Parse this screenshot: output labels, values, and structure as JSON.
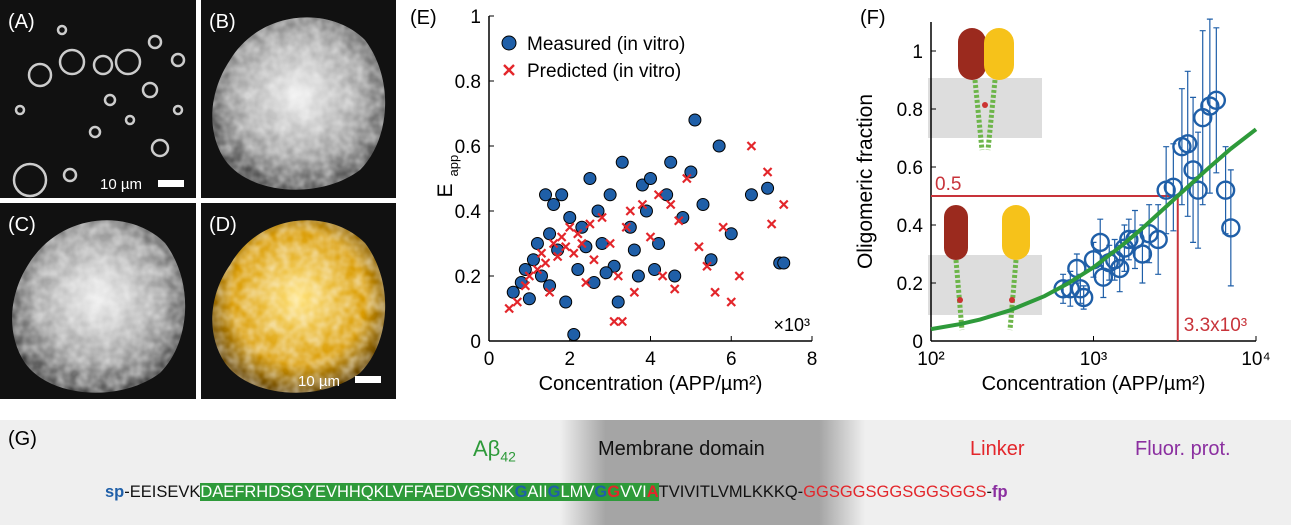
{
  "images": [
    {
      "label": "(A)",
      "scale_bar": "10 µm"
    },
    {
      "label": "(B)"
    },
    {
      "label": "(C)"
    },
    {
      "label": "(D)",
      "scale_bar": "10 µm"
    }
  ],
  "chart_data": [
    {
      "type": "scatter",
      "panel_label": "(E)",
      "xlabel": "Concentration (APP/µm²)",
      "ylabel": "E",
      "ylabel_sub": "app",
      "x_multiplier_label": "×10³",
      "legend": "upper left",
      "xlim": [
        0,
        8
      ],
      "xticks": [
        0,
        2,
        4,
        6,
        8
      ],
      "ylim": [
        0,
        1
      ],
      "yticks": [
        0,
        0.2,
        0.4,
        0.6,
        0.8,
        1
      ],
      "series": [
        {
          "name": "Measured (in vitro)",
          "color": "#1f5fa8",
          "marker": "circle",
          "x": [
            0.6,
            0.8,
            0.9,
            1.0,
            1.1,
            1.2,
            1.3,
            1.4,
            1.5,
            1.6,
            1.7,
            1.8,
            1.9,
            2.0,
            2.1,
            2.2,
            2.3,
            2.4,
            2.5,
            2.6,
            2.7,
            2.8,
            3.0,
            3.1,
            3.2,
            3.3,
            3.5,
            3.6,
            3.8,
            3.9,
            4.0,
            4.1,
            4.2,
            4.4,
            4.6,
            4.8,
            5.0,
            5.1,
            5.3,
            5.5,
            5.7,
            6.0,
            6.5,
            6.9,
            7.2,
            7.3,
            4.5,
            1.5,
            2.9,
            3.7
          ],
          "values": [
            0.15,
            0.18,
            0.22,
            0.13,
            0.25,
            0.3,
            0.2,
            0.45,
            0.33,
            0.42,
            0.28,
            0.45,
            0.12,
            0.38,
            0.02,
            0.22,
            0.35,
            0.29,
            0.5,
            0.18,
            0.4,
            0.3,
            0.45,
            0.23,
            0.12,
            0.55,
            0.35,
            0.28,
            0.48,
            0.4,
            0.5,
            0.22,
            0.3,
            0.45,
            0.2,
            0.38,
            0.52,
            0.68,
            0.42,
            0.25,
            0.6,
            0.33,
            0.45,
            0.47,
            0.24,
            0.24,
            0.55,
            0.17,
            0.21,
            0.2
          ]
        },
        {
          "name": "Predicted (in vitro)",
          "color": "#e3262b",
          "marker": "cross",
          "x": [
            0.5,
            0.7,
            0.9,
            1.0,
            1.2,
            1.3,
            1.4,
            1.6,
            1.7,
            1.8,
            1.9,
            2.0,
            2.1,
            2.2,
            2.3,
            2.5,
            2.6,
            2.8,
            3.0,
            3.1,
            3.2,
            3.4,
            3.5,
            3.6,
            3.8,
            4.0,
            4.2,
            4.3,
            4.5,
            4.7,
            4.9,
            5.2,
            5.4,
            5.6,
            5.8,
            6.0,
            6.2,
            6.5,
            6.9,
            7.0,
            7.3,
            2.4,
            1.5,
            3.3,
            4.6
          ],
          "values": [
            0.1,
            0.12,
            0.17,
            0.2,
            0.22,
            0.27,
            0.24,
            0.3,
            0.26,
            0.32,
            0.29,
            0.35,
            0.27,
            0.33,
            0.3,
            0.36,
            0.25,
            0.38,
            0.3,
            0.06,
            0.2,
            0.35,
            0.4,
            0.15,
            0.42,
            0.32,
            0.45,
            0.2,
            0.42,
            0.37,
            0.5,
            0.29,
            0.23,
            0.15,
            0.35,
            0.12,
            0.2,
            0.6,
            0.52,
            0.36,
            0.42,
            0.18,
            0.15,
            0.06,
            0.16
          ]
        }
      ]
    },
    {
      "type": "scatter",
      "panel_label": "(F)",
      "xlabel": "Concentration (APP/µm²)",
      "ylabel": "Oligomeric fraction",
      "xscale": "log",
      "xlim": [
        100,
        10000
      ],
      "xticks": [
        {
          "value": 100,
          "label": "10²"
        },
        {
          "value": 1000,
          "label": "10³"
        },
        {
          "value": 10000,
          "label": "10⁴"
        }
      ],
      "ylim": [
        0,
        1.1
      ],
      "yticks": [
        0,
        0.2,
        0.4,
        0.6,
        0.8,
        1
      ],
      "hline": 0.5,
      "vline": {
        "value": 3300,
        "label": "3.3x10³"
      },
      "reference_color": "#c8333a",
      "series": [
        {
          "color": "#1f5fa8",
          "marker": "open-circle",
          "x": [
            650,
            720,
            790,
            830,
            870,
            1000,
            1100,
            1150,
            1250,
            1350,
            1450,
            1550,
            1650,
            1800,
            2000,
            2200,
            2500,
            2800,
            3100,
            3500,
            3800,
            4100,
            4400,
            4700,
            5200,
            5700,
            6500,
            7000
          ],
          "values": [
            0.18,
            0.18,
            0.25,
            0.18,
            0.15,
            0.28,
            0.34,
            0.22,
            0.27,
            0.28,
            0.25,
            0.32,
            0.35,
            0.35,
            0.3,
            0.37,
            0.35,
            0.52,
            0.53,
            0.67,
            0.68,
            0.59,
            0.52,
            0.77,
            0.81,
            0.83,
            0.52,
            0.39
          ],
          "errors": [
            0.05,
            0.06,
            0.05,
            0.05,
            0.04,
            0.06,
            0.08,
            0.07,
            0.06,
            0.07,
            0.08,
            0.08,
            0.07,
            0.1,
            0.1,
            0.1,
            0.12,
            0.15,
            0.15,
            0.2,
            0.25,
            0.25,
            0.2,
            0.3,
            0.3,
            0.25,
            0.15,
            0.2
          ]
        },
        {
          "color": "#2e9a3a",
          "style": "line",
          "x": [
            100,
            150,
            200,
            300,
            500,
            700,
            1000,
            1500,
            2000,
            3000,
            5000,
            7000,
            10000
          ],
          "values": [
            0.041,
            0.058,
            0.074,
            0.104,
            0.155,
            0.199,
            0.254,
            0.33,
            0.389,
            0.479,
            0.592,
            0.663,
            0.73
          ]
        }
      ]
    }
  ],
  "sequence_panel": {
    "label": "(G)",
    "abeta": "Aβ",
    "abeta_sub": "42",
    "membrane": "Membrane domain",
    "linker": "Linker",
    "fluor": "Fluor. prot.",
    "parts": [
      "sp",
      "-EEISEVK",
      "DAEFRHDSGYEVHHQKLVFFAEDVGSNK",
      "G",
      "AII",
      "G",
      "LMV",
      "G",
      "G",
      "VVI",
      "A",
      "TVIVITLVMLKKKQ-",
      "GGSGGSGGSGGSGGS",
      "-",
      "fp"
    ]
  }
}
